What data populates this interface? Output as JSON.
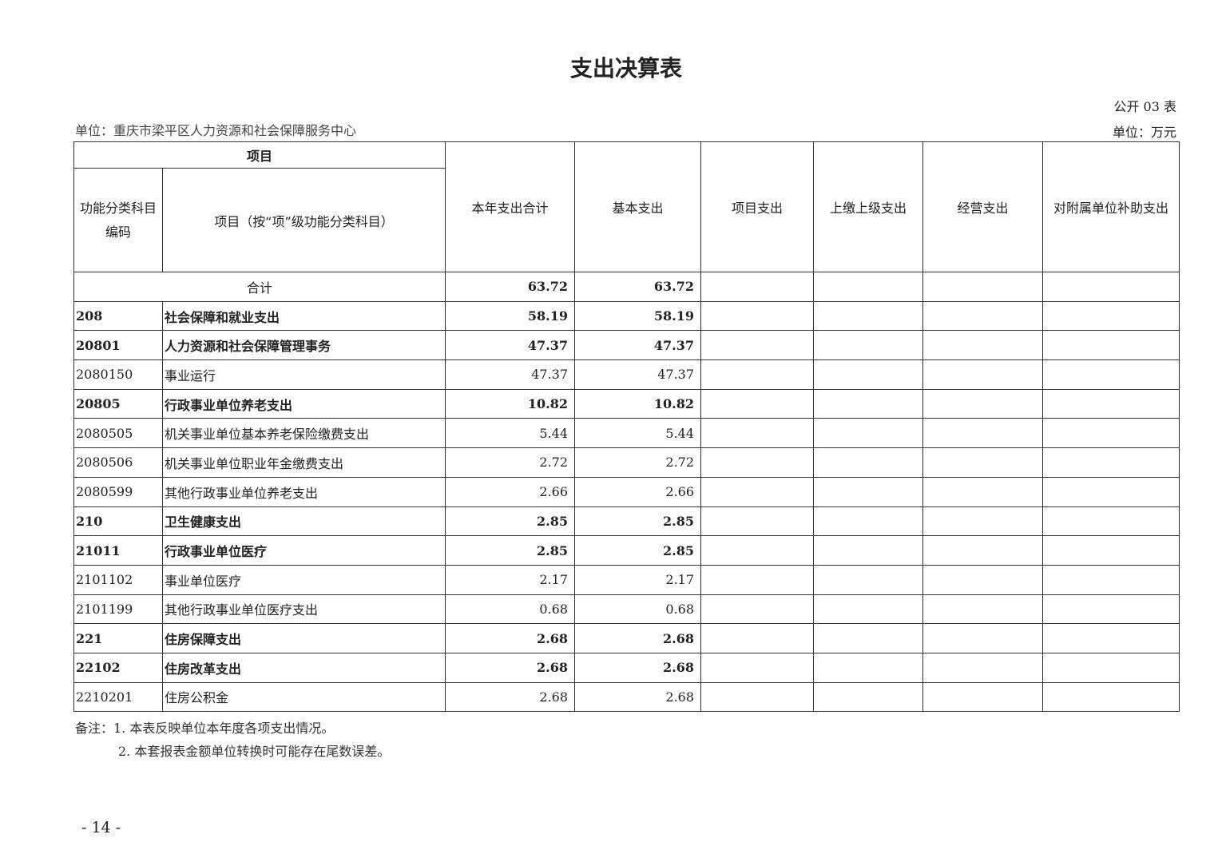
{
  "title": "支出决算表",
  "form_no": "公开 03 表",
  "unit_org": "单位：重庆市梁平区人力资源和社会保障服务中心",
  "unit_currency": "单位：万元",
  "headers": {
    "item": "项目",
    "code": "功能分类科目编码",
    "name": "项目（按“项”级功能分类科目）",
    "total": "本年支出合计",
    "basic": "基本支出",
    "project": "项目支出",
    "upper": "上缴上级支出",
    "business": "经营支出",
    "subsidy": "对附属单位补助支出"
  },
  "total_row": {
    "label": "合计",
    "total": "63.72",
    "basic": "63.72"
  },
  "rows": [
    {
      "code": "208",
      "name": "社会保障和就业支出",
      "total": "58.19",
      "basic": "58.19",
      "bold": true
    },
    {
      "code": "20801",
      "name": "人力资源和社会保障管理事务",
      "total": "47.37",
      "basic": "47.37",
      "bold": true
    },
    {
      "code": "2080150",
      "name": "事业运行",
      "total": "47.37",
      "basic": "47.37",
      "bold": false
    },
    {
      "code": "20805",
      "name": "行政事业单位养老支出",
      "total": "10.82",
      "basic": "10.82",
      "bold": true
    },
    {
      "code": "2080505",
      "name": "机关事业单位基本养老保险缴费支出",
      "total": "5.44",
      "basic": "5.44",
      "bold": false
    },
    {
      "code": "2080506",
      "name": "机关事业单位职业年金缴费支出",
      "total": "2.72",
      "basic": "2.72",
      "bold": false
    },
    {
      "code": "2080599",
      "name": "其他行政事业单位养老支出",
      "total": "2.66",
      "basic": "2.66",
      "bold": false
    },
    {
      "code": "210",
      "name": "卫生健康支出",
      "total": "2.85",
      "basic": "2.85",
      "bold": true
    },
    {
      "code": "21011",
      "name": "行政事业单位医疗",
      "total": "2.85",
      "basic": "2.85",
      "bold": true
    },
    {
      "code": "2101102",
      "name": "事业单位医疗",
      "total": "2.17",
      "basic": "2.17",
      "bold": false
    },
    {
      "code": "2101199",
      "name": "其他行政事业单位医疗支出",
      "total": "0.68",
      "basic": "0.68",
      "bold": false
    },
    {
      "code": "221",
      "name": "住房保障支出",
      "total": "2.68",
      "basic": "2.68",
      "bold": true
    },
    {
      "code": "22102",
      "name": "住房改革支出",
      "total": "2.68",
      "basic": "2.68",
      "bold": true
    },
    {
      "code": "2210201",
      "name": "住房公积金",
      "total": "2.68",
      "basic": "2.68",
      "bold": false
    }
  ],
  "notes": [
    "备注：1. 本表反映单位本年度各项支出情况。",
    "2. 本套报表金额单位转换时可能存在尾数误差。"
  ],
  "page_number": "- 14 -"
}
